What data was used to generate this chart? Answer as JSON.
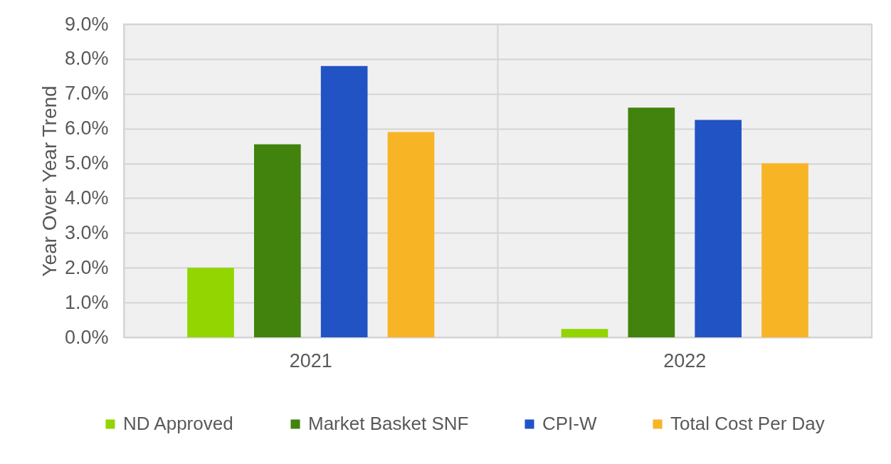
{
  "chart_data": {
    "type": "bar",
    "ylabel": "Year Over Year Trend",
    "categories": [
      "2021",
      "2022"
    ],
    "series": [
      {
        "name": "ND Approved",
        "color": "#92d500",
        "values": [
          2.0,
          0.24
        ]
      },
      {
        "name": "Market Basket SNF",
        "color": "#41830c",
        "values": [
          5.55,
          6.6
        ]
      },
      {
        "name": "CPI-W",
        "color": "#2253c5",
        "values": [
          7.8,
          6.25
        ]
      },
      {
        "name": "Total Cost Per Day",
        "color": "#f7b425",
        "values": [
          5.9,
          5.0
        ]
      }
    ],
    "ylim": [
      0,
      9
    ],
    "yticks": [
      {
        "value": 0,
        "label": "0.0%"
      },
      {
        "value": 1,
        "label": "1.0%"
      },
      {
        "value": 2,
        "label": "2.0%"
      },
      {
        "value": 3,
        "label": "3.0%"
      },
      {
        "value": 4,
        "label": "4.0%"
      },
      {
        "value": 5,
        "label": "5.0%"
      },
      {
        "value": 6,
        "label": "6.0%"
      },
      {
        "value": 7,
        "label": "7.0%"
      },
      {
        "value": 8,
        "label": "8.0%"
      },
      {
        "value": 9,
        "label": "9.0%"
      }
    ],
    "grid": true,
    "legend": "bottom"
  }
}
